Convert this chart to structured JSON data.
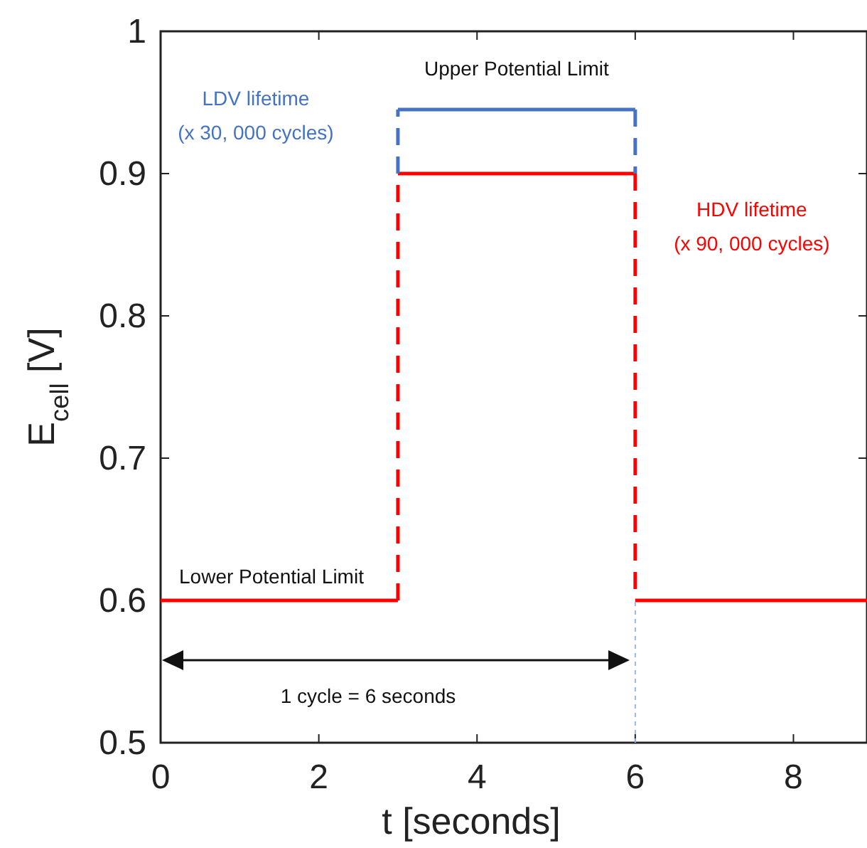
{
  "chart_data": {
    "type": "line",
    "xlabel": "t [seconds]",
    "ylabel": "E$_{cell}$ [V]",
    "xlim": [
      0,
      8.93
    ],
    "xticks": [
      0,
      2,
      4,
      6,
      8
    ],
    "ylim": [
      0.5,
      1
    ],
    "yticks": [
      0.5,
      0.6,
      0.7,
      0.8,
      0.9,
      1
    ],
    "grid": false,
    "series": [
      {
        "color": "#ff0000",
        "line_style": "solid",
        "x": [
          0,
          3
        ],
        "values": [
          0.6,
          0.6
        ]
      },
      {
        "name": "HDV lifetime\n(x 90, 000 cycles)",
        "color": "#ff0000",
        "line_style": "solid",
        "x": [
          3,
          6
        ],
        "values": [
          0.9,
          0.9
        ]
      },
      {
        "color": "#ff0000",
        "line_style": "solid",
        "x": [
          6,
          8.93
        ],
        "values": [
          0.6,
          0.6
        ]
      },
      {
        "color": "#ff0000",
        "line_style": "dashed",
        "x": [
          3,
          3
        ],
        "values": [
          0.6,
          0.9
        ]
      },
      {
        "color": "#ff0000",
        "line_style": "dashed",
        "x": [
          6,
          6
        ],
        "values": [
          0.9,
          0.6
        ]
      },
      {
        "name": "LDV lifetime\n(x 30, 000 cycles)",
        "color": "#4472c4",
        "line_style": "solid",
        "x": [
          3,
          6
        ],
        "values": [
          0.945,
          0.945
        ]
      },
      {
        "color": "#4472c4",
        "line_style": "dashed",
        "x": [
          3,
          3
        ],
        "values": [
          0.9,
          0.945
        ]
      },
      {
        "color": "#4472c4",
        "line_style": "dashed",
        "x": [
          6,
          6
        ],
        "values": [
          0.945,
          0.9
        ]
      },
      {
        "color": "#9ab8e8",
        "line_style": "dotted",
        "x": [
          6,
          6
        ],
        "values": [
          0.5,
          0.6
        ]
      }
    ],
    "annotations": [
      "Upper Potential Limit",
      "Lower Potential Limit",
      "1 cycle = 6 seconds"
    ]
  }
}
